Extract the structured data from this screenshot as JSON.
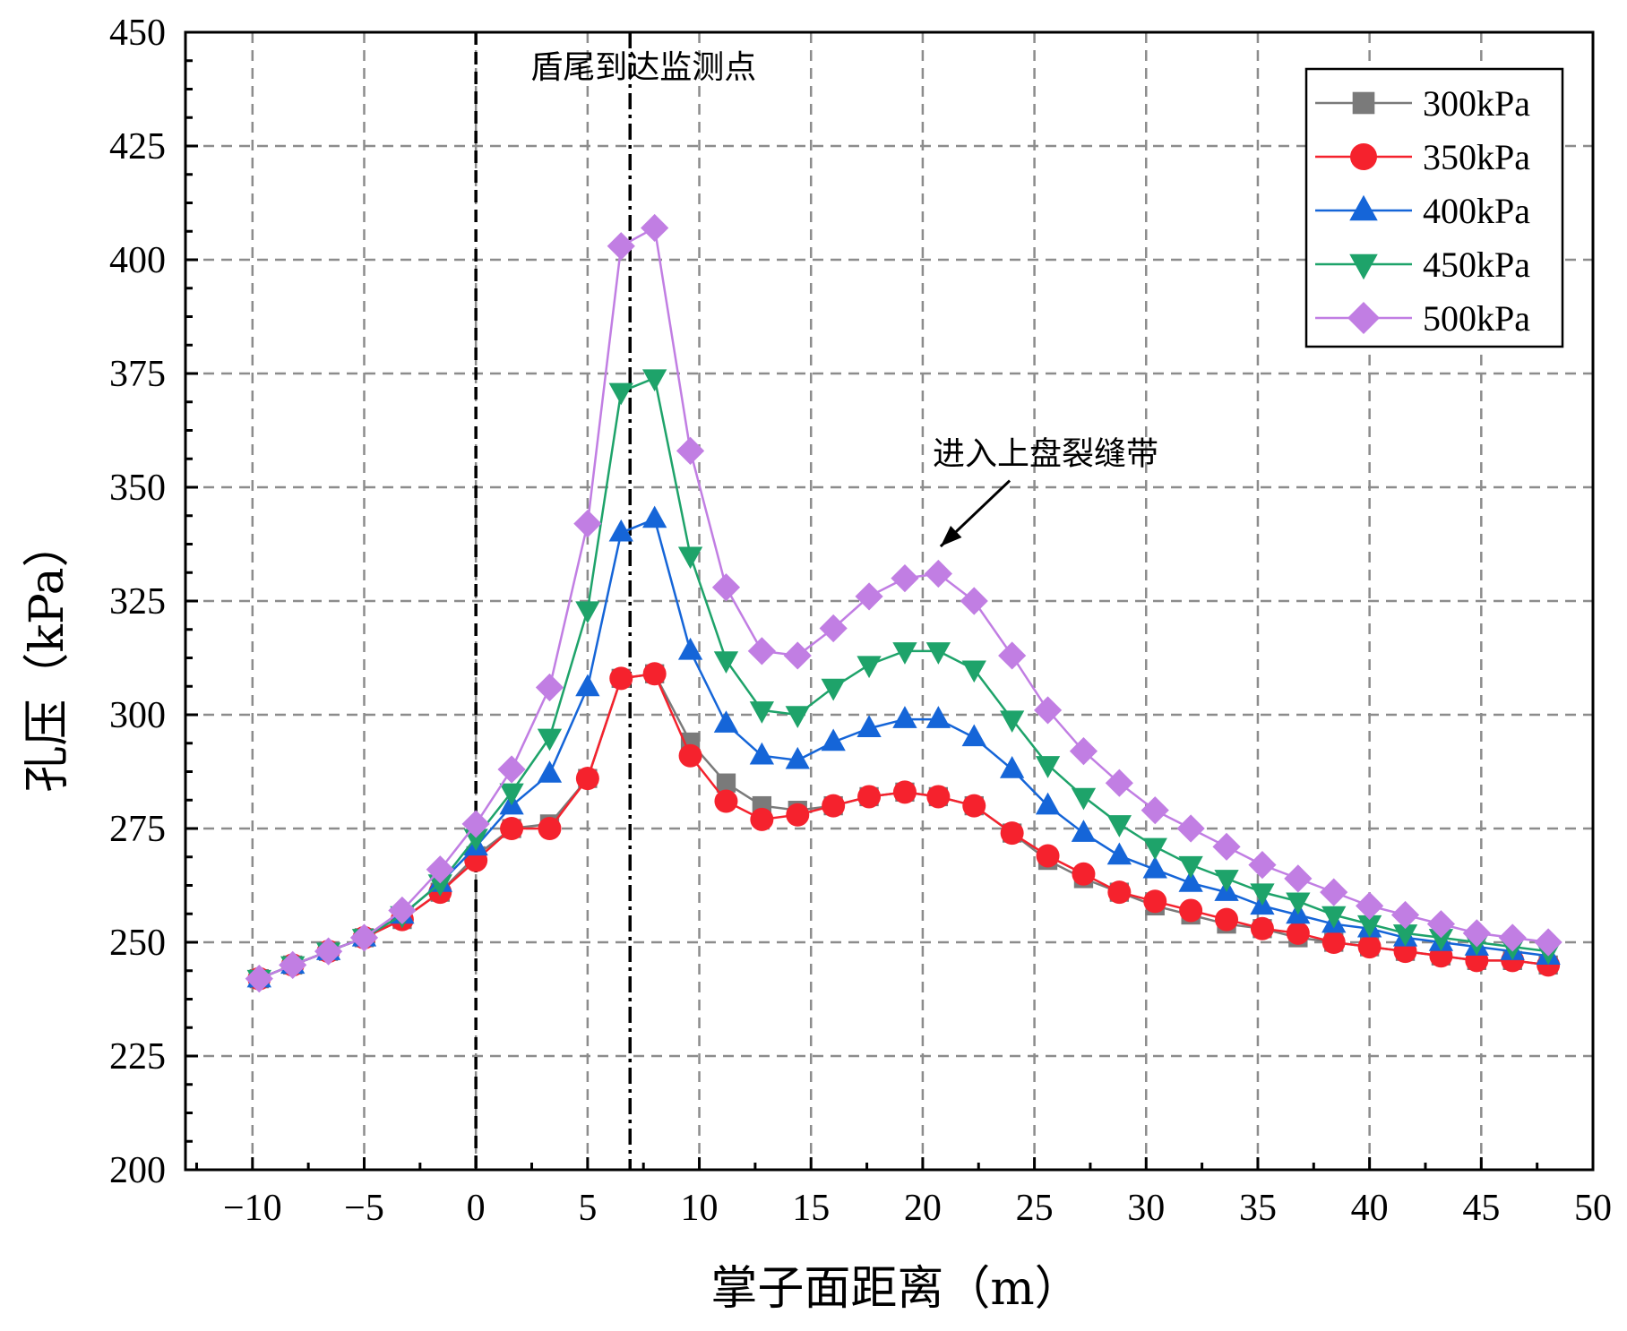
{
  "chart_data": {
    "type": "line",
    "xlabel": "掌子面距离（m）",
    "ylabel": "孔压（kPa）",
    "xlim": [
      -13,
      50
    ],
    "ylim": [
      200,
      450
    ],
    "xticks": [
      -10,
      -5,
      0,
      5,
      10,
      15,
      20,
      25,
      30,
      35,
      40,
      45,
      50
    ],
    "yticks": [
      200,
      225,
      250,
      275,
      300,
      325,
      350,
      375,
      400,
      425,
      450
    ],
    "xtick_labels": [
      "−10",
      "−5",
      "0",
      "5",
      "10",
      "15",
      "20",
      "25",
      "30",
      "35",
      "40",
      "45",
      "50"
    ],
    "ytick_labels": [
      "200",
      "225",
      "250",
      "275",
      "300",
      "325",
      "350",
      "375",
      "400",
      "425",
      "450"
    ],
    "grid": true,
    "legend_position": "top-right",
    "vertical_lines": [
      {
        "x": 0,
        "style": "dashed"
      },
      {
        "x": 6.9,
        "style": "dash-dot"
      }
    ],
    "annotations": [
      {
        "text": "盾尾到达监测点",
        "x": 7.5,
        "y": 440
      },
      {
        "text": "进入上盘裂缝带",
        "x": 25.5,
        "y": 355,
        "arrow_to": {
          "x": 20.8,
          "y": 337
        }
      }
    ],
    "x": [
      -9.7,
      -8.2,
      -6.6,
      -5.0,
      -3.3,
      -1.6,
      0.0,
      1.6,
      3.3,
      5.0,
      6.5,
      8.0,
      9.6,
      11.2,
      12.8,
      14.4,
      16.0,
      17.6,
      19.2,
      20.7,
      22.3,
      24.0,
      25.6,
      27.2,
      28.8,
      30.4,
      32.0,
      33.6,
      35.2,
      36.8,
      38.4,
      40.0,
      41.6,
      43.2,
      44.8,
      46.4,
      48.0
    ],
    "series": [
      {
        "name": "300kPa",
        "color": "#7a7a7a",
        "marker": "square",
        "values": [
          242,
          245,
          248,
          251,
          255,
          261,
          269,
          275,
          276,
          286,
          308,
          309,
          294,
          285,
          280,
          279,
          280,
          282,
          283,
          282,
          280,
          274,
          268,
          264,
          261,
          258,
          256,
          254,
          253,
          251,
          250,
          249,
          248,
          247,
          246,
          246,
          245
        ]
      },
      {
        "name": "350kPa",
        "color": "#f5222d",
        "marker": "circle",
        "values": [
          242,
          245,
          248,
          251,
          255,
          261,
          268,
          275,
          275,
          286,
          308,
          309,
          291,
          281,
          277,
          278,
          280,
          282,
          283,
          282,
          280,
          274,
          269,
          265,
          261,
          259,
          257,
          255,
          253,
          252,
          250,
          249,
          248,
          247,
          246,
          246,
          245
        ]
      },
      {
        "name": "400kPa",
        "color": "#1565d8",
        "marker": "triangle-up",
        "values": [
          242,
          245,
          248,
          251,
          256,
          263,
          271,
          280,
          287,
          306,
          340,
          343,
          314,
          298,
          291,
          290,
          294,
          297,
          299,
          299,
          295,
          288,
          280,
          274,
          269,
          266,
          263,
          261,
          258,
          256,
          254,
          253,
          251,
          250,
          249,
          248,
          247
        ]
      },
      {
        "name": "450kPa",
        "color": "#1ea36a",
        "marker": "triangle-down",
        "values": [
          242,
          245,
          248,
          251,
          256,
          263,
          273,
          283,
          295,
          323,
          371,
          374,
          335,
          312,
          301,
          300,
          306,
          311,
          314,
          314,
          310,
          299,
          289,
          282,
          276,
          271,
          267,
          264,
          261,
          259,
          256,
          254,
          252,
          251,
          250,
          249,
          248
        ]
      },
      {
        "name": "500kPa",
        "color": "#c17ee3",
        "marker": "diamond",
        "values": [
          242,
          245,
          248,
          251,
          257,
          266,
          276,
          288,
          306,
          342,
          403,
          407,
          358,
          328,
          314,
          313,
          319,
          326,
          330,
          331,
          325,
          313,
          301,
          292,
          285,
          279,
          275,
          271,
          267,
          264,
          261,
          258,
          256,
          254,
          252,
          251,
          250
        ]
      }
    ]
  }
}
